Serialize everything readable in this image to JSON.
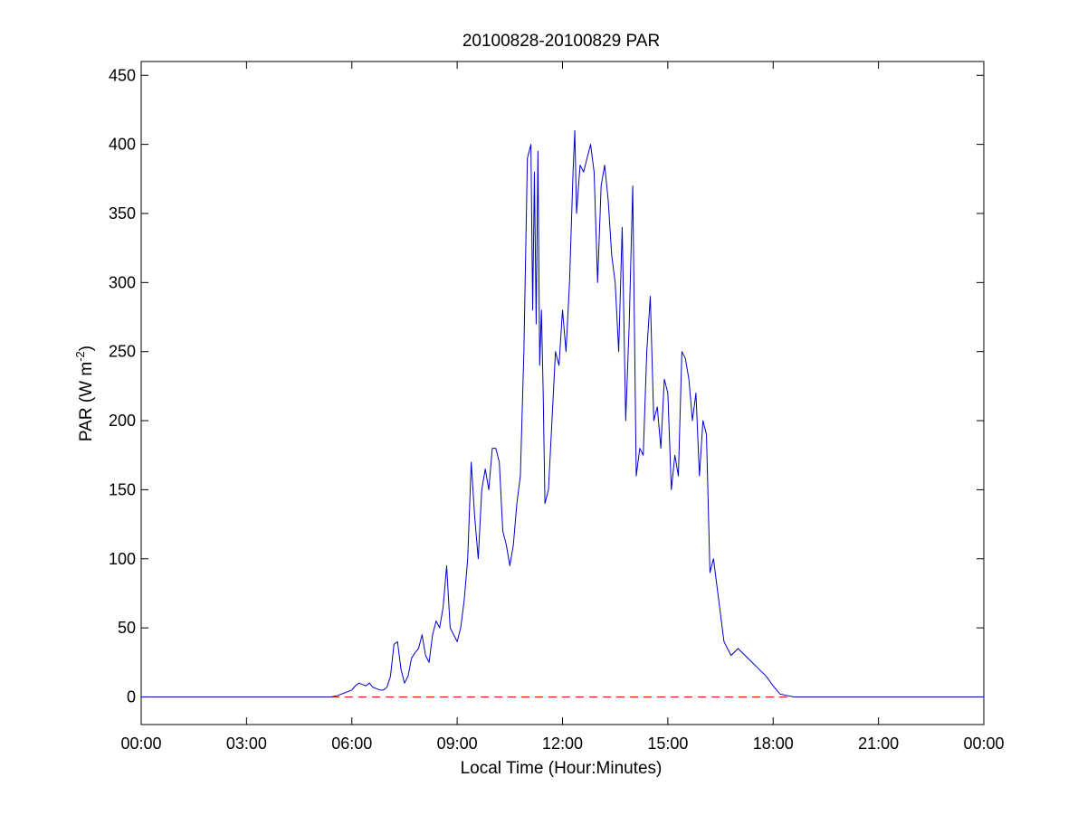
{
  "chart_data": {
    "type": "line",
    "title": "20100828-20100829 PAR",
    "xlabel": "Local Time (Hour:Minutes)",
    "ylabel_main": "PAR (W m",
    "ylabel_sup": "-2",
    "ylabel_close": ")",
    "xlim": [
      0,
      24
    ],
    "ylim": [
      -20,
      460
    ],
    "x_ticks": [
      0,
      3,
      6,
      9,
      12,
      15,
      18,
      21,
      24
    ],
    "x_tick_labels": [
      "00:00",
      "03:00",
      "06:00",
      "09:00",
      "12:00",
      "15:00",
      "18:00",
      "21:00",
      "00:00"
    ],
    "y_ticks": [
      0,
      50,
      100,
      150,
      200,
      250,
      300,
      350,
      400,
      450
    ],
    "y_tick_labels": [
      "0",
      "50",
      "100",
      "150",
      "200",
      "250",
      "300",
      "350",
      "400",
      "450"
    ],
    "grid": false,
    "series": [
      {
        "color": "#0000cc",
        "style": "solid",
        "x": [
          0,
          5.4,
          5.6,
          5.8,
          6.0,
          6.1,
          6.2,
          6.3,
          6.4,
          6.5,
          6.6,
          6.7,
          6.8,
          6.9,
          7.0,
          7.1,
          7.2,
          7.3,
          7.4,
          7.5,
          7.6,
          7.7,
          7.8,
          7.9,
          8.0,
          8.1,
          8.2,
          8.3,
          8.4,
          8.5,
          8.6,
          8.7,
          8.8,
          8.9,
          9.0,
          9.1,
          9.2,
          9.3,
          9.4,
          9.5,
          9.6,
          9.7,
          9.8,
          9.9,
          10.0,
          10.1,
          10.2,
          10.3,
          10.4,
          10.5,
          10.6,
          10.7,
          10.8,
          10.9,
          11.0,
          11.1,
          11.15,
          11.2,
          11.25,
          11.3,
          11.35,
          11.4,
          11.45,
          11.5,
          11.6,
          11.7,
          11.8,
          11.9,
          12.0,
          12.1,
          12.2,
          12.3,
          12.35,
          12.4,
          12.5,
          12.6,
          12.7,
          12.8,
          12.9,
          13.0,
          13.1,
          13.2,
          13.3,
          13.4,
          13.5,
          13.6,
          13.7,
          13.8,
          13.9,
          14.0,
          14.1,
          14.2,
          14.3,
          14.4,
          14.5,
          14.6,
          14.7,
          14.8,
          14.9,
          15.0,
          15.1,
          15.2,
          15.3,
          15.4,
          15.5,
          15.6,
          15.7,
          15.8,
          15.9,
          16.0,
          16.1,
          16.2,
          16.3,
          16.4,
          16.5,
          16.6,
          16.8,
          17.0,
          17.2,
          17.4,
          17.6,
          17.8,
          18.0,
          18.2,
          18.4,
          18.6,
          18.8,
          19.0,
          24.0
        ],
        "y": [
          0,
          0,
          1,
          3,
          5,
          8,
          10,
          9,
          8,
          10,
          7,
          6,
          5,
          5,
          7,
          15,
          38,
          40,
          20,
          10,
          15,
          28,
          32,
          35,
          45,
          30,
          25,
          45,
          55,
          50,
          65,
          95,
          50,
          45,
          40,
          50,
          70,
          100,
          170,
          130,
          100,
          150,
          165,
          150,
          180,
          180,
          170,
          120,
          110,
          95,
          110,
          140,
          160,
          250,
          390,
          400,
          280,
          380,
          270,
          395,
          240,
          280,
          220,
          140,
          150,
          200,
          250,
          240,
          280,
          250,
          300,
          380,
          410,
          350,
          385,
          380,
          390,
          400,
          380,
          300,
          370,
          385,
          360,
          320,
          300,
          250,
          340,
          200,
          270,
          370,
          160,
          180,
          175,
          250,
          290,
          200,
          210,
          180,
          230,
          220,
          150,
          175,
          160,
          250,
          245,
          230,
          200,
          220,
          160,
          200,
          190,
          90,
          100,
          80,
          60,
          40,
          30,
          35,
          30,
          25,
          20,
          15,
          8,
          2,
          1,
          0,
          0,
          0,
          0
        ]
      },
      {
        "color": "#ff0000",
        "style": "dashed",
        "x": [
          0,
          24
        ],
        "y": [
          0,
          0
        ]
      }
    ]
  }
}
